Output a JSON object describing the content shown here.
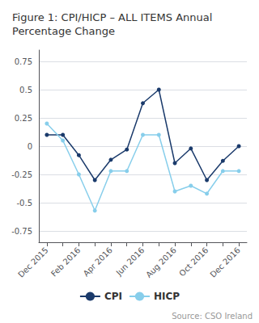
{
  "chart_data": {
    "type": "line",
    "title": "Figure 1: CPI/HICP – ALL ITEMS Annual\nPercentage Change",
    "categories": [
      "Dec 2015",
      null,
      "Feb 2016",
      null,
      "Apr 2016",
      null,
      "Jun 2016",
      null,
      "Aug 2016",
      null,
      "Oct 2016",
      null,
      "Dec 2016"
    ],
    "series": [
      {
        "name": "CPI",
        "color": "#1a3a6b",
        "values": [
          0.1,
          0.1,
          -0.08,
          -0.3,
          -0.12,
          -0.03,
          0.38,
          0.5,
          -0.15,
          -0.02,
          -0.3,
          -0.13,
          0.0
        ]
      },
      {
        "name": "HICP",
        "color": "#87ceeb",
        "values": [
          0.2,
          0.05,
          -0.25,
          -0.57,
          -0.22,
          -0.22,
          0.1,
          0.1,
          -0.4,
          -0.35,
          -0.42,
          -0.22,
          -0.22
        ]
      }
    ],
    "ylim": [
      -0.85,
      0.85
    ],
    "yticks": [
      -0.75,
      -0.5,
      -0.25,
      0,
      0.25,
      0.5,
      0.75
    ],
    "grid": true,
    "legend": "bottom",
    "marker": "circle",
    "annotations": [
      "Source: CSO Ireland"
    ]
  }
}
